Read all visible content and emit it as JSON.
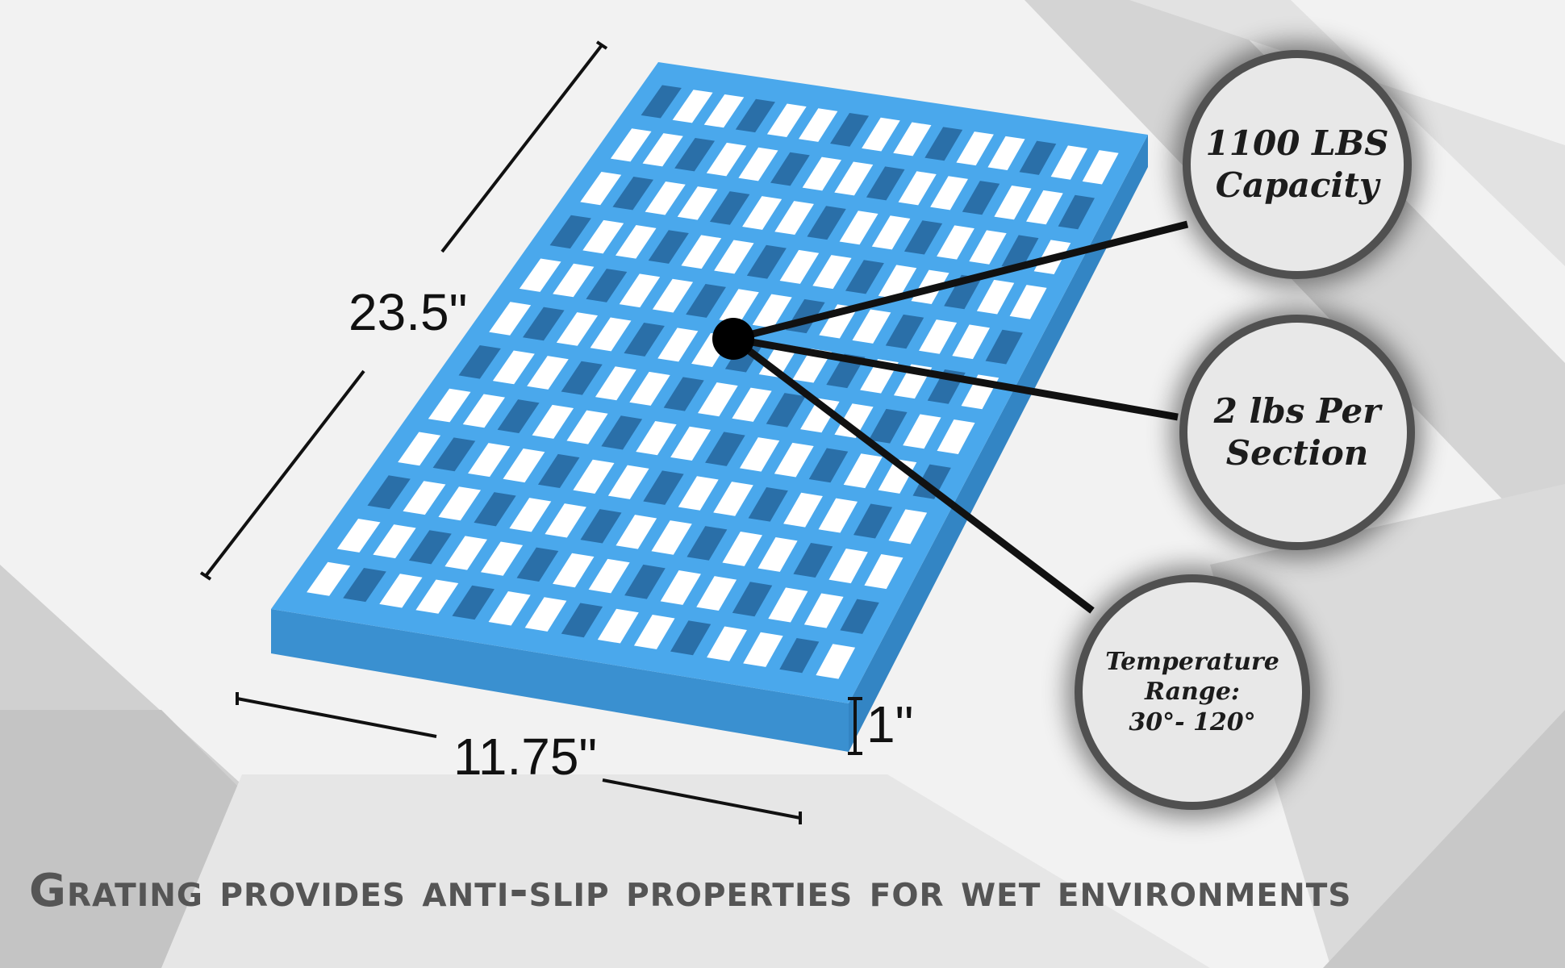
{
  "dimensions": {
    "length": "23.5\"",
    "width": "11.75\"",
    "height": "1\""
  },
  "callouts": [
    {
      "lines": [
        "1100 LBS",
        "Capacity"
      ]
    },
    {
      "lines": [
        "2 lbs Per",
        "Section"
      ]
    },
    {
      "lines": [
        "Temperature",
        "Range:",
        "30°- 120°"
      ]
    }
  ],
  "tagline": "Grating provides anti-slip properties for wet environments",
  "colors": {
    "grate": "#4aa8ec",
    "background": "#f2f2f2",
    "circle_border": "#505050",
    "tagline": "#555555"
  },
  "icons": {
    "product": "plastic-floor-grate-image"
  }
}
